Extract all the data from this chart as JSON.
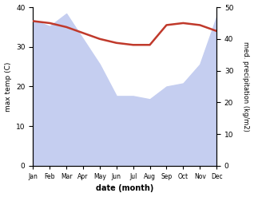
{
  "months": [
    "Jan",
    "Feb",
    "Mar",
    "Apr",
    "May",
    "Jun",
    "Jul",
    "Aug",
    "Sep",
    "Oct",
    "Nov",
    "Dec"
  ],
  "temp_max": [
    36.5,
    36.0,
    35.0,
    33.5,
    32.0,
    31.0,
    30.5,
    30.5,
    35.5,
    36.0,
    35.5,
    34.0
  ],
  "precip": [
    46.0,
    44.0,
    48.0,
    40.0,
    32.0,
    22.0,
    22.0,
    21.0,
    25.0,
    26.0,
    32.0,
    47.0
  ],
  "temp_color": "#c0392b",
  "precip_fill_color": "#c5cef0",
  "temp_ylim": [
    0,
    40
  ],
  "precip_ylim": [
    0,
    50
  ],
  "xlabel": "date (month)",
  "ylabel_left": "max temp (C)",
  "ylabel_right": "med. precipitation (kg/m2)",
  "temp_yticks": [
    0,
    10,
    20,
    30,
    40
  ],
  "precip_yticks": [
    0,
    10,
    20,
    30,
    40,
    50
  ],
  "bg_color": "#ffffff"
}
